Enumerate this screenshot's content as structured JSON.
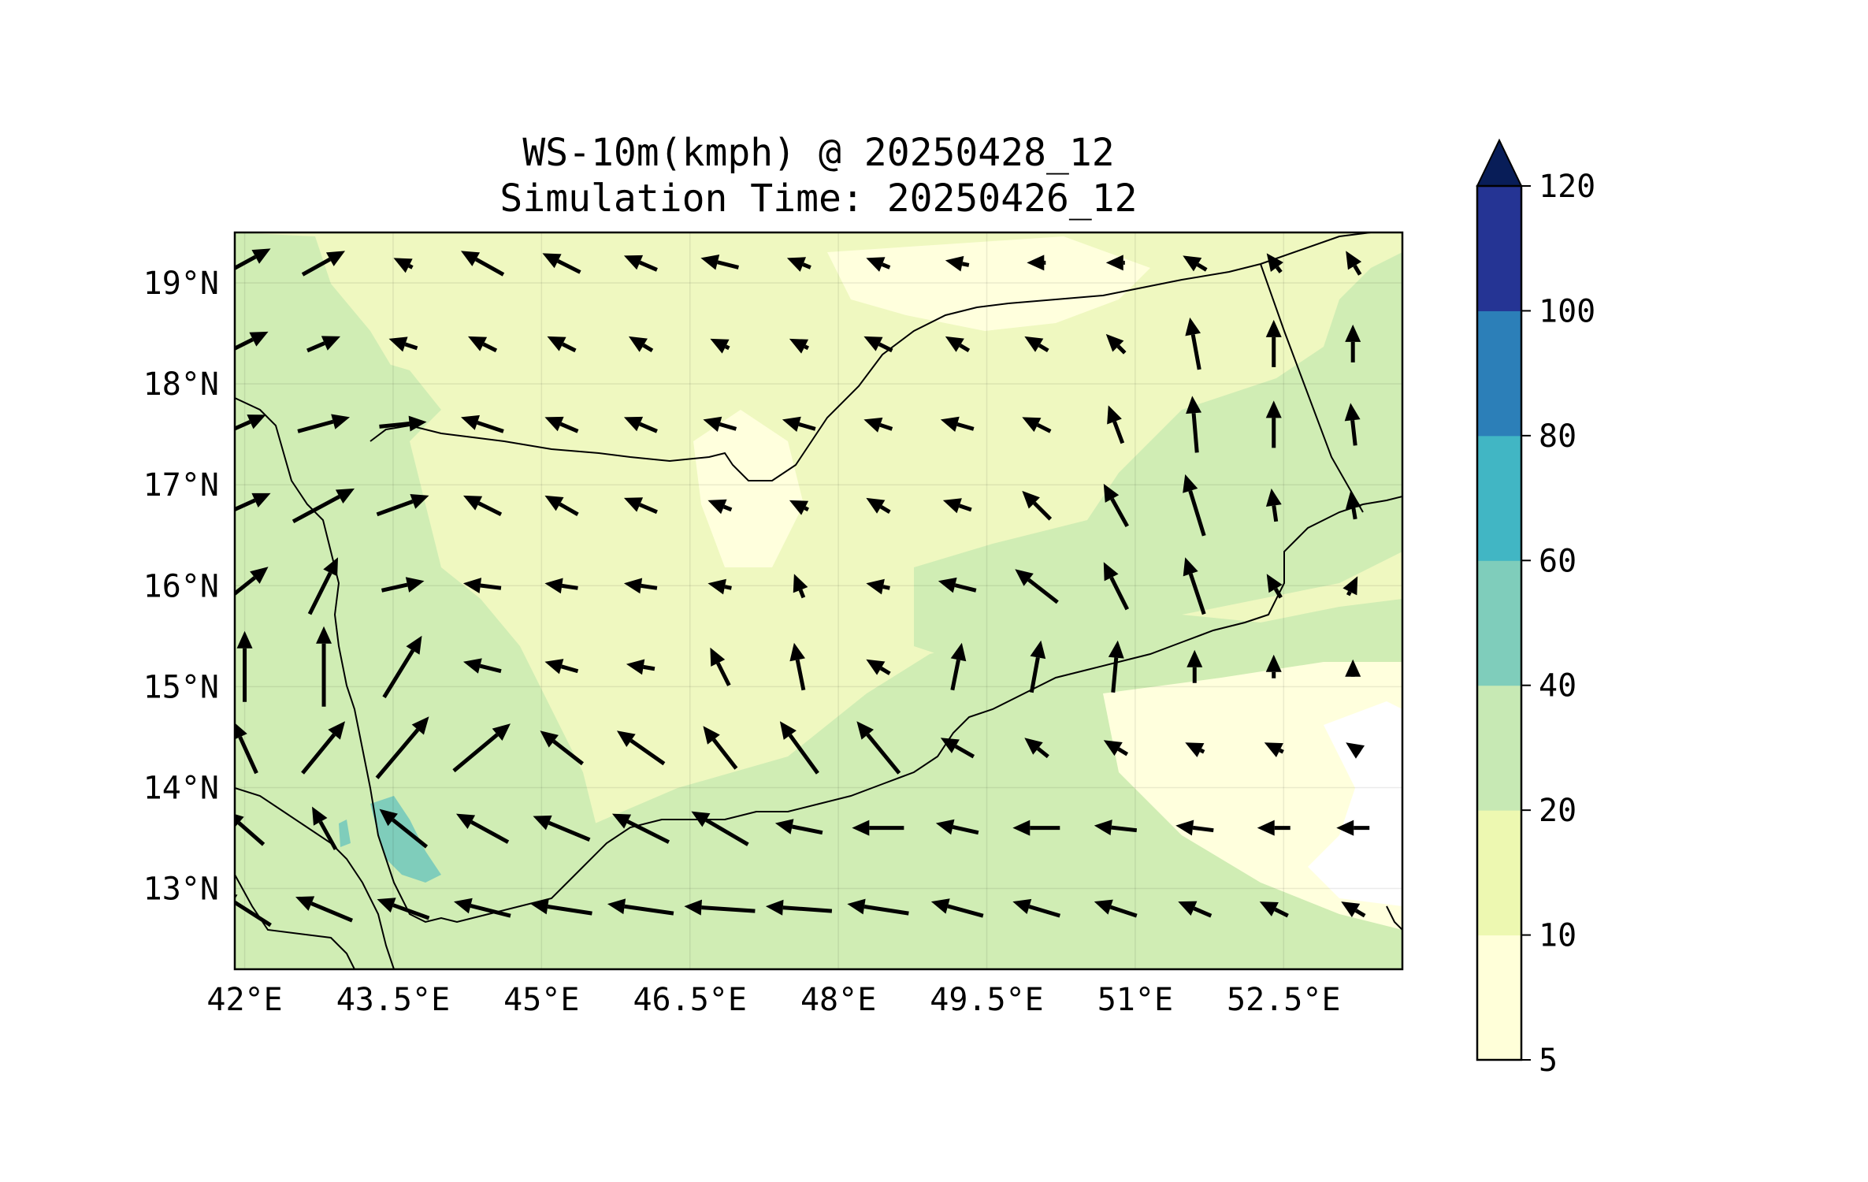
{
  "title": {
    "line1": "WS-10m(kmph) @ 20250428_12",
    "line2": "Simulation Time: 20250426_12"
  },
  "map": {
    "lon_range": [
      41.9,
      53.7
    ],
    "lat_range": [
      12.2,
      19.5
    ],
    "x_ticks": [
      {
        "value": 42.0,
        "label": "42°E"
      },
      {
        "value": 43.5,
        "label": "43.5°E"
      },
      {
        "value": 45.0,
        "label": "45°E"
      },
      {
        "value": 46.5,
        "label": "46.5°E"
      },
      {
        "value": 48.0,
        "label": "48°E"
      },
      {
        "value": 49.5,
        "label": "49.5°E"
      },
      {
        "value": 51.0,
        "label": "51°E"
      },
      {
        "value": 52.5,
        "label": "52.5°E"
      }
    ],
    "y_ticks": [
      {
        "value": 19,
        "label": "19°N"
      },
      {
        "value": 18,
        "label": "18°N"
      },
      {
        "value": 17,
        "label": "17°N"
      },
      {
        "value": 16,
        "label": "16°N"
      },
      {
        "value": 15,
        "label": "15°N"
      },
      {
        "value": 14,
        "label": "14°N"
      },
      {
        "value": 13,
        "label": "13°N"
      }
    ],
    "gridlines": true,
    "field": "10 m wind speed (kmph), filled contours",
    "dominant_class_colors": {
      "background": "#eff8c0",
      "calm": "#ffffdd",
      "strong": "#d0edb4",
      "very_strong": "#7fcdbb",
      "extreme_spot": "#45b4c2"
    }
  },
  "colorbar": {
    "levels": [
      5,
      10,
      20,
      40,
      60,
      80,
      100,
      120
    ],
    "labels": [
      "5",
      "10",
      "20",
      "40",
      "60",
      "80",
      "100",
      "120"
    ],
    "colors": [
      "#ffffd9",
      "#edf8b1",
      "#c7e9b4",
      "#7fcdbb",
      "#41b6c4",
      "#2c7fb8",
      "#253494"
    ],
    "extend": "max",
    "extend_color": "#081d58"
  },
  "chart_data": {
    "type": "heatmap",
    "title": "WS-10m(kmph) @ 20250428_12",
    "subtitle": "Simulation Time: 20250426_12",
    "xlabel": "",
    "ylabel": "",
    "xlim": [
      41.9,
      53.7
    ],
    "ylim": [
      12.2,
      19.5
    ],
    "grid": true,
    "wind_vectors": {
      "lon": [
        42.0,
        42.8,
        43.6,
        44.4,
        45.2,
        46.0,
        46.8,
        47.6,
        48.4,
        49.2,
        50.0,
        50.8,
        51.6,
        52.4,
        53.2
      ],
      "lat": [
        19.2,
        18.4,
        17.6,
        16.8,
        16.0,
        15.2,
        14.4,
        13.6,
        12.8
      ],
      "u_kmph": [
        [
          22,
          18,
          -8,
          -18,
          -16,
          -14,
          -16,
          -10,
          -10,
          -10,
          -8,
          -8,
          -10,
          -6,
          -6
        ],
        [
          20,
          14,
          -12,
          -12,
          -12,
          -10,
          -8,
          -8,
          -12,
          -10,
          -10,
          -8,
          -4,
          0,
          0
        ],
        [
          18,
          22,
          20,
          -18,
          -14,
          -14,
          -14,
          -14,
          -12,
          -14,
          -12,
          -6,
          -2,
          0,
          -2
        ],
        [
          22,
          26,
          22,
          -16,
          -14,
          -14,
          -10,
          -8,
          -10,
          -12,
          -12,
          -10,
          -8,
          -2,
          -2
        ],
        [
          20,
          12,
          18,
          -16,
          -14,
          -14,
          -10,
          -4,
          -10,
          -16,
          -18,
          -10,
          -8,
          -6,
          4
        ],
        [
          0,
          0,
          16,
          -16,
          -14,
          -12,
          -8,
          -4,
          -10,
          4,
          4,
          2,
          0,
          0,
          0
        ],
        [
          -10,
          18,
          22,
          24,
          -18,
          -20,
          -14,
          -16,
          -18,
          -14,
          -10,
          -10,
          -8,
          -8,
          -6
        ],
        [
          -16,
          -10,
          -20,
          -22,
          -24,
          -24,
          -24,
          -20,
          -22,
          -18,
          -20,
          -18,
          -16,
          -14,
          -14
        ],
        [
          -22,
          -24,
          -22,
          -24,
          -26,
          -28,
          -30,
          -28,
          -26,
          -22,
          -20,
          -18,
          -14,
          -12,
          -10
        ]
      ],
      "v_kmph": [
        [
          12,
          10,
          4,
          10,
          8,
          6,
          4,
          4,
          4,
          2,
          0,
          0,
          6,
          8,
          10
        ],
        [
          10,
          6,
          4,
          6,
          6,
          6,
          4,
          4,
          6,
          6,
          6,
          8,
          22,
          20,
          16
        ],
        [
          8,
          6,
          2,
          6,
          6,
          6,
          4,
          4,
          4,
          4,
          6,
          16,
          24,
          20,
          18
        ],
        [
          10,
          14,
          8,
          8,
          8,
          6,
          4,
          4,
          6,
          4,
          12,
          18,
          26,
          14,
          12
        ],
        [
          16,
          24,
          4,
          2,
          2,
          2,
          2,
          10,
          2,
          4,
          14,
          20,
          24,
          10,
          8
        ],
        [
          30,
          34,
          26,
          4,
          4,
          2,
          16,
          20,
          6,
          20,
          22,
          22,
          14,
          10,
          6
        ],
        [
          22,
          22,
          26,
          20,
          14,
          14,
          18,
          22,
          22,
          8,
          8,
          6,
          4,
          4,
          4
        ],
        [
          14,
          18,
          16,
          12,
          10,
          12,
          14,
          4,
          0,
          4,
          0,
          2,
          2,
          0,
          0
        ],
        [
          14,
          10,
          8,
          6,
          4,
          4,
          2,
          2,
          4,
          6,
          6,
          6,
          6,
          6,
          6
        ]
      ]
    }
  }
}
